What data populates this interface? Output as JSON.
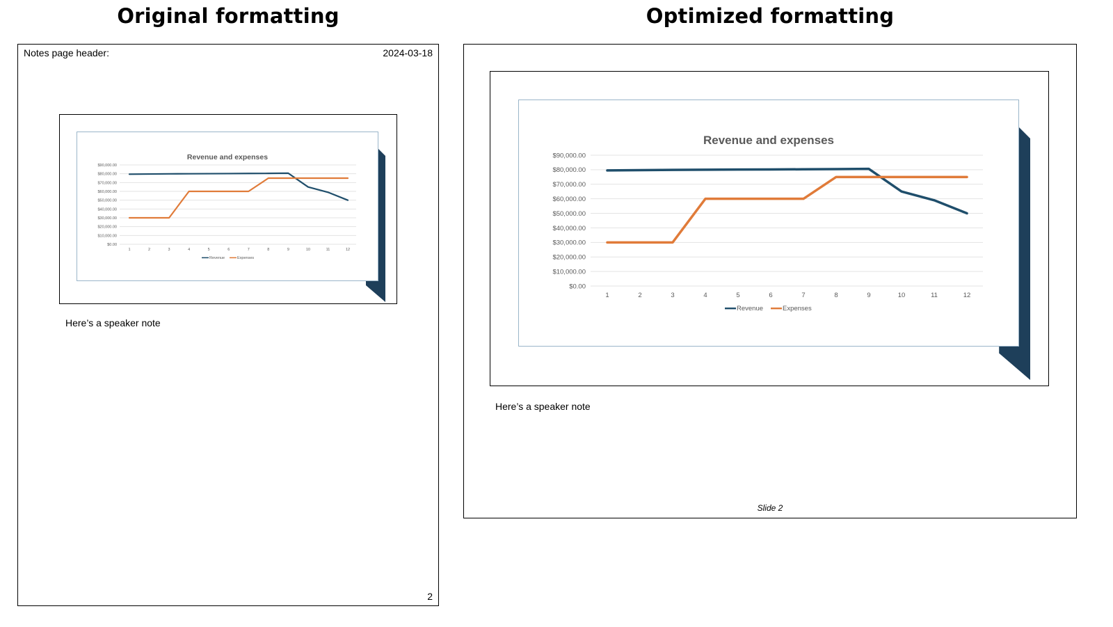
{
  "headings": {
    "left": "Original formatting",
    "right": "Optimized formatting"
  },
  "original": {
    "header_text": "Notes page header:",
    "header_date": "2024-03-18",
    "speaker_note": "Here’s a speaker note",
    "page_number": "2"
  },
  "optimized": {
    "speaker_note": "Here’s a speaker note",
    "slide_label": "Slide 2"
  },
  "colors": {
    "revenue": "#1f4e6b",
    "expenses": "#e07b39",
    "shadow": "#1e3f5a",
    "chart_border": "#9ab5c9",
    "grid": "#e3e3e3",
    "text_muted": "#595959"
  },
  "chart_data": {
    "type": "line",
    "title": "Revenue and expenses",
    "x": [
      "1",
      "2",
      "3",
      "4",
      "5",
      "6",
      "7",
      "8",
      "9",
      "10",
      "11",
      "12"
    ],
    "y_ticks": [
      "$0.00",
      "$10,000.00",
      "$20,000.00",
      "$30,000.00",
      "$40,000.00",
      "$50,000.00",
      "$60,000.00",
      "$70,000.00",
      "$80,000.00",
      "$90,000.00"
    ],
    "ylim": [
      0,
      90000
    ],
    "grid": true,
    "legend": "bottom",
    "series": [
      {
        "name": "Revenue",
        "values": [
          79500,
          79700,
          79900,
          80000,
          80100,
          80200,
          80300,
          80400,
          80600,
          65000,
          59000,
          50000
        ]
      },
      {
        "name": "Expenses",
        "values": [
          30000,
          30000,
          30000,
          60000,
          60000,
          60000,
          60000,
          75000,
          75000,
          75000,
          75000,
          75000
        ]
      }
    ]
  }
}
